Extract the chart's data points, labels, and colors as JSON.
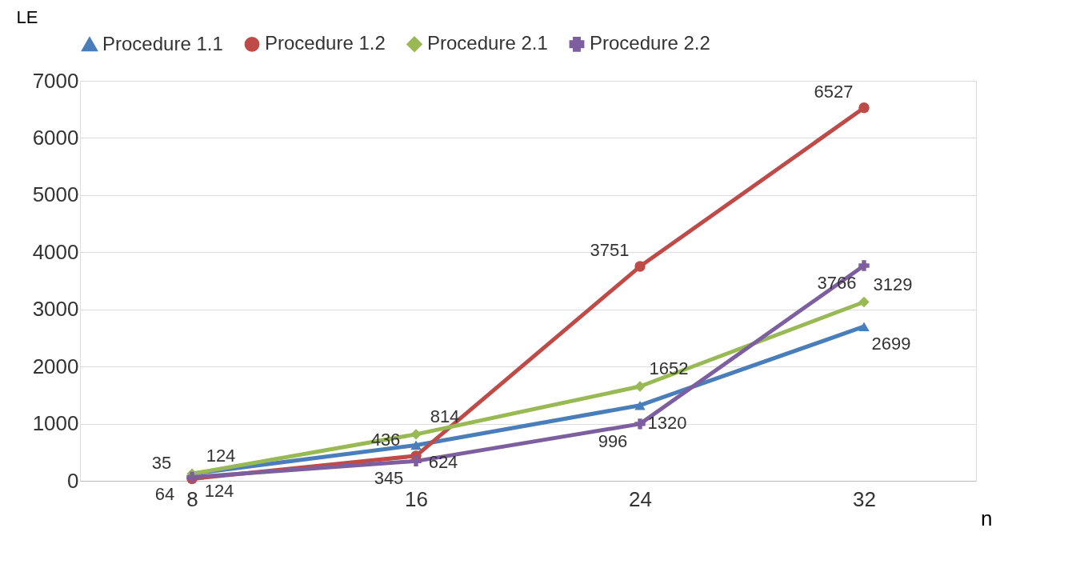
{
  "chart_data": {
    "type": "line",
    "xlabel": "n",
    "ylabel": "LE",
    "categories": [
      "8",
      "16",
      "24",
      "32"
    ],
    "series": [
      {
        "name": "Procedure 1.1",
        "color": "#4a7ebb",
        "marker": "triangle",
        "values": [
          124,
          624,
          1320,
          2699
        ]
      },
      {
        "name": "Procedure 1.2",
        "color": "#be4b48",
        "marker": "circle",
        "values": [
          35,
          436,
          3751,
          6527
        ]
      },
      {
        "name": "Procedure 2.1",
        "color": "#98b954",
        "marker": "diamond",
        "values": [
          124,
          814,
          1652,
          3129
        ]
      },
      {
        "name": "Procedure 2.2",
        "color": "#7d5fa0",
        "marker": "cross",
        "values": [
          64,
          345,
          996,
          3766
        ]
      }
    ],
    "ylim": [
      0,
      7000
    ],
    "yticks": [
      0,
      1000,
      2000,
      3000,
      4000,
      5000,
      6000,
      7000
    ],
    "grid": "y",
    "legend": "top",
    "data_labels": true
  }
}
